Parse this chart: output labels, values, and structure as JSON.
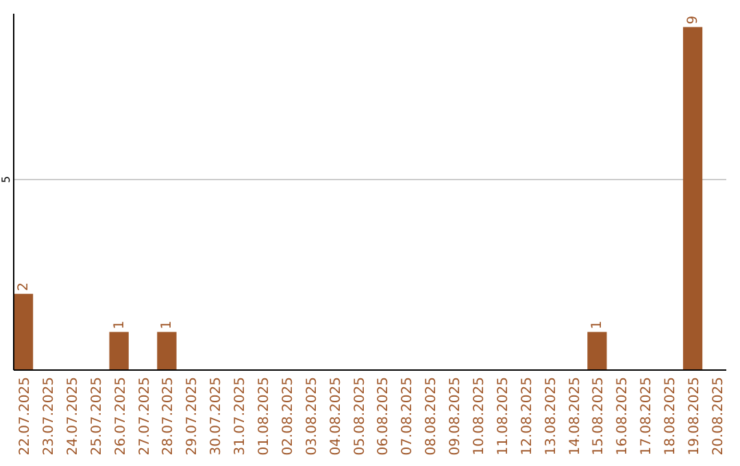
{
  "chart_data": {
    "type": "bar",
    "categories": [
      "22.07.2025",
      "23.07.2025",
      "24.07.2025",
      "25.07.2025",
      "26.07.2025",
      "27.07.2025",
      "28.07.2025",
      "29.07.2025",
      "30.07.2025",
      "31.07.2025",
      "01.08.2025",
      "02.08.2025",
      "03.08.2025",
      "04.08.2025",
      "05.08.2025",
      "06.08.2025",
      "07.08.2025",
      "08.08.2025",
      "09.08.2025",
      "10.08.2025",
      "11.08.2025",
      "12.08.2025",
      "13.08.2025",
      "14.08.2025",
      "15.08.2025",
      "16.08.2025",
      "17.08.2025",
      "18.08.2025",
      "19.08.2025",
      "20.08.2025"
    ],
    "values": [
      2,
      0,
      0,
      0,
      1,
      0,
      1,
      0,
      0,
      0,
      0,
      0,
      0,
      0,
      0,
      0,
      0,
      0,
      0,
      0,
      0,
      0,
      0,
      0,
      1,
      0,
      0,
      0,
      9,
      0
    ],
    "value_labels": [
      "2",
      null,
      null,
      null,
      "1",
      null,
      "1",
      null,
      null,
      null,
      null,
      null,
      null,
      null,
      null,
      null,
      null,
      null,
      null,
      null,
      null,
      null,
      null,
      null,
      "1",
      null,
      null,
      null,
      "9",
      null
    ],
    "color": "#a0582a",
    "ylim": [
      0,
      9.35
    ],
    "yticks": [
      5
    ],
    "grid": "y"
  }
}
